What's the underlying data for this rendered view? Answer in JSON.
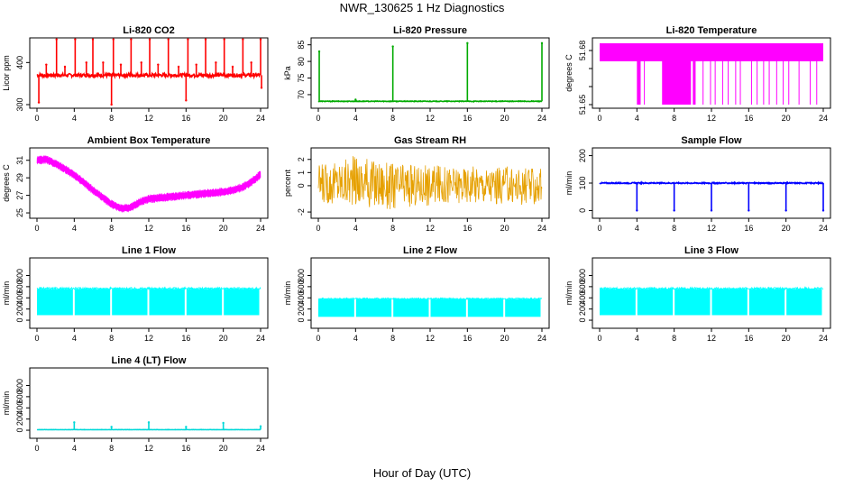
{
  "figure": {
    "title": "NWR_130625  1 Hz Diagnostics",
    "xlabel": "Hour of Day (UTC)"
  },
  "chart_data": [
    {
      "type": "line",
      "title": "Li-820 CO2",
      "ylabel": "Licor ppm",
      "color": "#ff0000",
      "xlim": [
        0,
        24
      ],
      "ylim": [
        300,
        450
      ],
      "xticks": [
        0,
        4,
        8,
        12,
        16,
        20,
        24
      ],
      "yticks": [
        300,
        400
      ],
      "baseline": 370,
      "noise": 4,
      "spikes": [
        {
          "x": 0.2,
          "y": 305
        },
        {
          "x": 1.0,
          "y": 395
        },
        {
          "x": 2.1,
          "y": 455
        },
        {
          "x": 3.0,
          "y": 390
        },
        {
          "x": 4.1,
          "y": 455
        },
        {
          "x": 5.3,
          "y": 400
        },
        {
          "x": 6.0,
          "y": 455
        },
        {
          "x": 7.1,
          "y": 400
        },
        {
          "x": 8.0,
          "y": 300
        },
        {
          "x": 8.2,
          "y": 455
        },
        {
          "x": 9.0,
          "y": 395
        },
        {
          "x": 10.1,
          "y": 455
        },
        {
          "x": 11.2,
          "y": 400
        },
        {
          "x": 12.1,
          "y": 455
        },
        {
          "x": 13.0,
          "y": 395
        },
        {
          "x": 14.1,
          "y": 455
        },
        {
          "x": 15.2,
          "y": 390
        },
        {
          "x": 16.0,
          "y": 310
        },
        {
          "x": 16.2,
          "y": 455
        },
        {
          "x": 17.1,
          "y": 395
        },
        {
          "x": 18.1,
          "y": 455
        },
        {
          "x": 19.2,
          "y": 400
        },
        {
          "x": 20.1,
          "y": 455
        },
        {
          "x": 21.0,
          "y": 390
        },
        {
          "x": 22.1,
          "y": 455
        },
        {
          "x": 23.0,
          "y": 400
        },
        {
          "x": 24.0,
          "y": 455
        },
        {
          "x": 24.1,
          "y": 340
        }
      ]
    },
    {
      "type": "line",
      "title": "Li-820 Pressure",
      "ylabel": "kPa",
      "color": "#00aa00",
      "xlim": [
        0,
        24
      ],
      "ylim": [
        67,
        86
      ],
      "xticks": [
        0,
        4,
        8,
        12,
        16,
        20,
        24
      ],
      "yticks": [
        70,
        75,
        80,
        85
      ],
      "baseline": 68,
      "noise": 0.1,
      "spikes": [
        {
          "x": 0.1,
          "y": 83
        },
        {
          "x": 4.0,
          "y": 68.5
        },
        {
          "x": 8.0,
          "y": 84.5
        },
        {
          "x": 16.0,
          "y": 85.5
        },
        {
          "x": 24.0,
          "y": 85.5
        }
      ]
    },
    {
      "type": "area",
      "title": "Li-820 Temperature",
      "ylabel": "degrees C",
      "color": "#ff00ff",
      "xlim": [
        0,
        24
      ],
      "ylim": [
        51.65,
        51.685
      ],
      "xticks": [
        0,
        4,
        8,
        12,
        16,
        20,
        24
      ],
      "yticks": [
        51.65,
        51.66,
        51.67,
        51.68
      ],
      "yticklabels": [
        "51.65",
        "",
        "",
        "51.68"
      ],
      "upper": 51.684,
      "band_lower": 51.674,
      "dense_drop_ranges": [
        [
          4.0,
          4.4
        ],
        [
          6.7,
          9.8
        ],
        [
          10.0,
          10.3
        ]
      ],
      "drops": [
        4.8,
        11.1,
        11.9,
        12.4,
        13.2,
        13.8,
        14.6,
        15.1,
        16.3,
        16.9,
        17.6,
        18.2,
        19.0,
        19.7,
        20.3,
        21.4,
        22.6,
        23.3
      ],
      "drop_min": 51.65
    },
    {
      "type": "line",
      "title": "Ambient Box Temperature",
      "ylabel": "degrees C",
      "color": "#ff00ff",
      "xlim": [
        0,
        24
      ],
      "ylim": [
        24.8,
        32
      ],
      "xticks": [
        0,
        4,
        8,
        12,
        16,
        20,
        24
      ],
      "yticks": [
        25,
        27,
        29,
        31
      ],
      "band": 1.0,
      "points": [
        {
          "x": 0,
          "y": 31.0
        },
        {
          "x": 1,
          "y": 31.1
        },
        {
          "x": 2,
          "y": 30.6
        },
        {
          "x": 3,
          "y": 30.0
        },
        {
          "x": 4,
          "y": 29.3
        },
        {
          "x": 5,
          "y": 28.5
        },
        {
          "x": 6,
          "y": 27.6
        },
        {
          "x": 7,
          "y": 26.8
        },
        {
          "x": 8,
          "y": 26.0
        },
        {
          "x": 9,
          "y": 25.5
        },
        {
          "x": 10,
          "y": 25.6
        },
        {
          "x": 11,
          "y": 26.2
        },
        {
          "x": 12,
          "y": 26.6
        },
        {
          "x": 13,
          "y": 26.7
        },
        {
          "x": 14,
          "y": 26.8
        },
        {
          "x": 15,
          "y": 26.9
        },
        {
          "x": 16,
          "y": 27.0
        },
        {
          "x": 17,
          "y": 27.1
        },
        {
          "x": 18,
          "y": 27.2
        },
        {
          "x": 19,
          "y": 27.3
        },
        {
          "x": 20,
          "y": 27.4
        },
        {
          "x": 21,
          "y": 27.6
        },
        {
          "x": 22,
          "y": 27.9
        },
        {
          "x": 23,
          "y": 28.5
        },
        {
          "x": 24,
          "y": 29.4
        }
      ]
    },
    {
      "type": "area",
      "title": "Gas Stream RH",
      "ylabel": "percent",
      "color": "#e6a000",
      "xlim": [
        0,
        24
      ],
      "ylim": [
        -2.2,
        2.6
      ],
      "xticks": [
        0,
        4,
        8,
        12,
        16,
        20,
        24
      ],
      "yticks": [
        -2,
        0,
        1,
        2
      ],
      "upper_envelope": [
        {
          "x": 0,
          "y": 1.6
        },
        {
          "x": 4,
          "y": 2.3
        },
        {
          "x": 8,
          "y": 1.8
        },
        {
          "x": 12,
          "y": 1.6
        },
        {
          "x": 16,
          "y": 1.5
        },
        {
          "x": 20,
          "y": 1.5
        },
        {
          "x": 24,
          "y": 1.3
        }
      ],
      "lower_envelope": [
        {
          "x": 0,
          "y": -1.3
        },
        {
          "x": 4,
          "y": -1.6
        },
        {
          "x": 8,
          "y": -1.8
        },
        {
          "x": 12,
          "y": -1.5
        },
        {
          "x": 16,
          "y": -1.3
        },
        {
          "x": 20,
          "y": -1.4
        },
        {
          "x": 24,
          "y": -1.5
        }
      ]
    },
    {
      "type": "line",
      "title": "Sample Flow",
      "ylabel": "ml/min",
      "color": "#0000ff",
      "xlim": [
        0,
        24
      ],
      "ylim": [
        -15,
        215
      ],
      "xticks": [
        0,
        4,
        8,
        12,
        16,
        20,
        24
      ],
      "yticks": [
        0,
        100,
        200
      ],
      "baseline": 100,
      "noise": 2,
      "spikes": [
        {
          "x": 4.0,
          "y": 0
        },
        {
          "x": 8.0,
          "y": 0
        },
        {
          "x": 12.0,
          "y": 0
        },
        {
          "x": 16.0,
          "y": 0
        },
        {
          "x": 20.0,
          "y": 0
        },
        {
          "x": 24.0,
          "y": 0
        }
      ]
    },
    {
      "type": "area",
      "title": "Line 1 Flow",
      "ylabel": "ml/min",
      "color": "#00ffff",
      "xlim": [
        0,
        24
      ],
      "ylim": [
        -80,
        1050
      ],
      "xticks": [
        0,
        4,
        8,
        12,
        16,
        20,
        24
      ],
      "yticks": [
        0,
        200,
        400,
        600,
        800
      ],
      "lower": 90,
      "upper": 560,
      "gaps": [
        4.0,
        8.0,
        12.0,
        16.0,
        20.0,
        24.0
      ]
    },
    {
      "type": "area",
      "title": "Line 2 Flow",
      "ylabel": "ml/min",
      "color": "#00ffff",
      "xlim": [
        0,
        24
      ],
      "ylim": [
        -80,
        1050
      ],
      "xticks": [
        0,
        4,
        8,
        12,
        16,
        20,
        24
      ],
      "yticks": [
        0,
        200,
        400,
        600,
        800
      ],
      "lower": 60,
      "upper": 380,
      "gaps": [
        4.0,
        8.0,
        12.0,
        16.0,
        20.0,
        24.0
      ]
    },
    {
      "type": "area",
      "title": "Line 3 Flow",
      "ylabel": "ml/min",
      "color": "#00ffff",
      "xlim": [
        0,
        24
      ],
      "ylim": [
        -80,
        1050
      ],
      "xticks": [
        0,
        4,
        8,
        12,
        16,
        20,
        24
      ],
      "yticks": [
        0,
        200,
        400,
        600,
        800
      ],
      "lower": 90,
      "upper": 560,
      "gaps": [
        4.0,
        8.0,
        12.0,
        16.0,
        20.0,
        24.0
      ]
    },
    {
      "type": "line",
      "title": "Line 4 (LT) Flow",
      "ylabel": "ml/min",
      "color": "#00d8d8",
      "xlim": [
        0,
        24
      ],
      "ylim": [
        -80,
        1050
      ],
      "xticks": [
        0,
        4,
        8,
        12,
        16,
        20,
        24
      ],
      "yticks": [
        0,
        200,
        400,
        600,
        800
      ],
      "baseline": 10,
      "noise": 2,
      "spikes": [
        {
          "x": 4.0,
          "y": 140
        },
        {
          "x": 8.0,
          "y": 60
        },
        {
          "x": 12.0,
          "y": 140
        },
        {
          "x": 16.0,
          "y": 60
        },
        {
          "x": 20.0,
          "y": 130
        },
        {
          "x": 24.0,
          "y": 70
        }
      ]
    }
  ]
}
